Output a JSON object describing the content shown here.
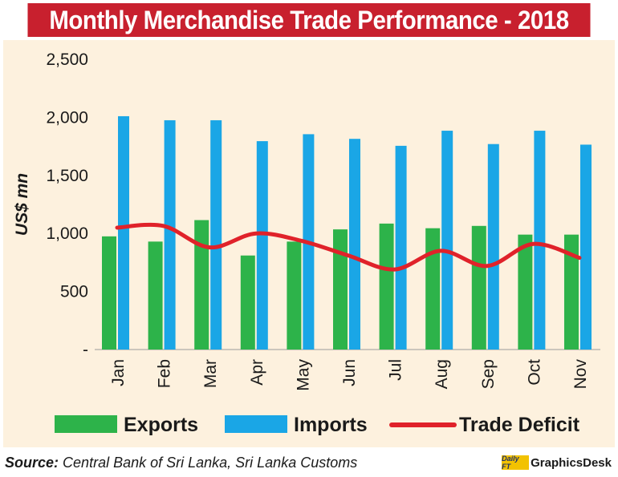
{
  "title": "Monthly Merchandise Trade Performance - 2018",
  "source_label": "Source:",
  "source_text": "Central Bank of Sri Lanka, Sri Lanka Customs",
  "credit_logo": "Daily FT",
  "credit_text": "GraphicsDesk",
  "colors": {
    "title_bg": "#c8202e",
    "panel_bg": "#fdf1de",
    "exports": "#2db34a",
    "imports": "#1aa6e6",
    "deficit": "#e0222a"
  },
  "chart_data": {
    "type": "bar",
    "title": "Monthly Merchandise Trade Performance - 2018",
    "ylabel": "US$ mn",
    "xlabel": "",
    "ylim": [
      0,
      2500
    ],
    "yticks": [
      0,
      500,
      1000,
      1500,
      2000,
      2500
    ],
    "ytick_labels": [
      "-",
      "500",
      "1,000",
      "1,500",
      "2,000",
      "2,500"
    ],
    "grid": false,
    "legend_position": "bottom",
    "categories": [
      "Jan",
      "Feb",
      "Mar",
      "Apr",
      "May",
      "Jun",
      "Jul",
      "Aug",
      "Sep",
      "Oct",
      "Nov"
    ],
    "series": [
      {
        "name": "Exports",
        "type": "bar",
        "color": "#2db34a",
        "values": [
          975,
          930,
          1115,
          810,
          930,
          1035,
          1085,
          1045,
          1065,
          990,
          990
        ]
      },
      {
        "name": "Imports",
        "type": "bar",
        "color": "#1aa6e6",
        "values": [
          2010,
          1975,
          1975,
          1795,
          1855,
          1815,
          1755,
          1885,
          1770,
          1885,
          1765
        ]
      },
      {
        "name": "Trade Deficit",
        "type": "line",
        "color": "#e0222a",
        "values": [
          1050,
          1065,
          880,
          1000,
          935,
          810,
          690,
          850,
          720,
          910,
          790
        ]
      }
    ]
  }
}
